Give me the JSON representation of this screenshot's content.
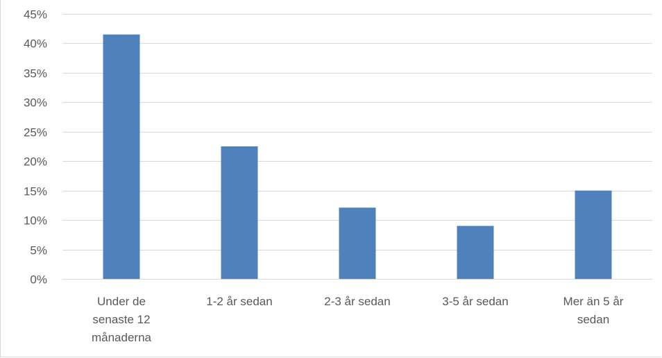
{
  "chart_data": {
    "type": "bar",
    "title": "",
    "xlabel": "",
    "ylabel": "",
    "categories": [
      [
        "Under de",
        "senaste 12",
        "månaderna"
      ],
      [
        "1-2 år sedan"
      ],
      [
        "2-3 år sedan"
      ],
      [
        "3-5 år sedan"
      ],
      [
        "Mer än 5 år",
        "sedan"
      ]
    ],
    "values": [
      41.5,
      22.5,
      12.1,
      9.0,
      15.0
    ],
    "ylim": [
      0,
      45
    ],
    "yticks": [
      0,
      5,
      10,
      15,
      20,
      25,
      30,
      35,
      40,
      45
    ],
    "ytick_labels": [
      "0%",
      "5%",
      "10%",
      "15%",
      "20%",
      "25%",
      "30%",
      "35%",
      "40%",
      "45%"
    ],
    "grid": true,
    "legend": "none",
    "bar_color": "#4f81bd",
    "grid_color": "#d9d9d9"
  }
}
